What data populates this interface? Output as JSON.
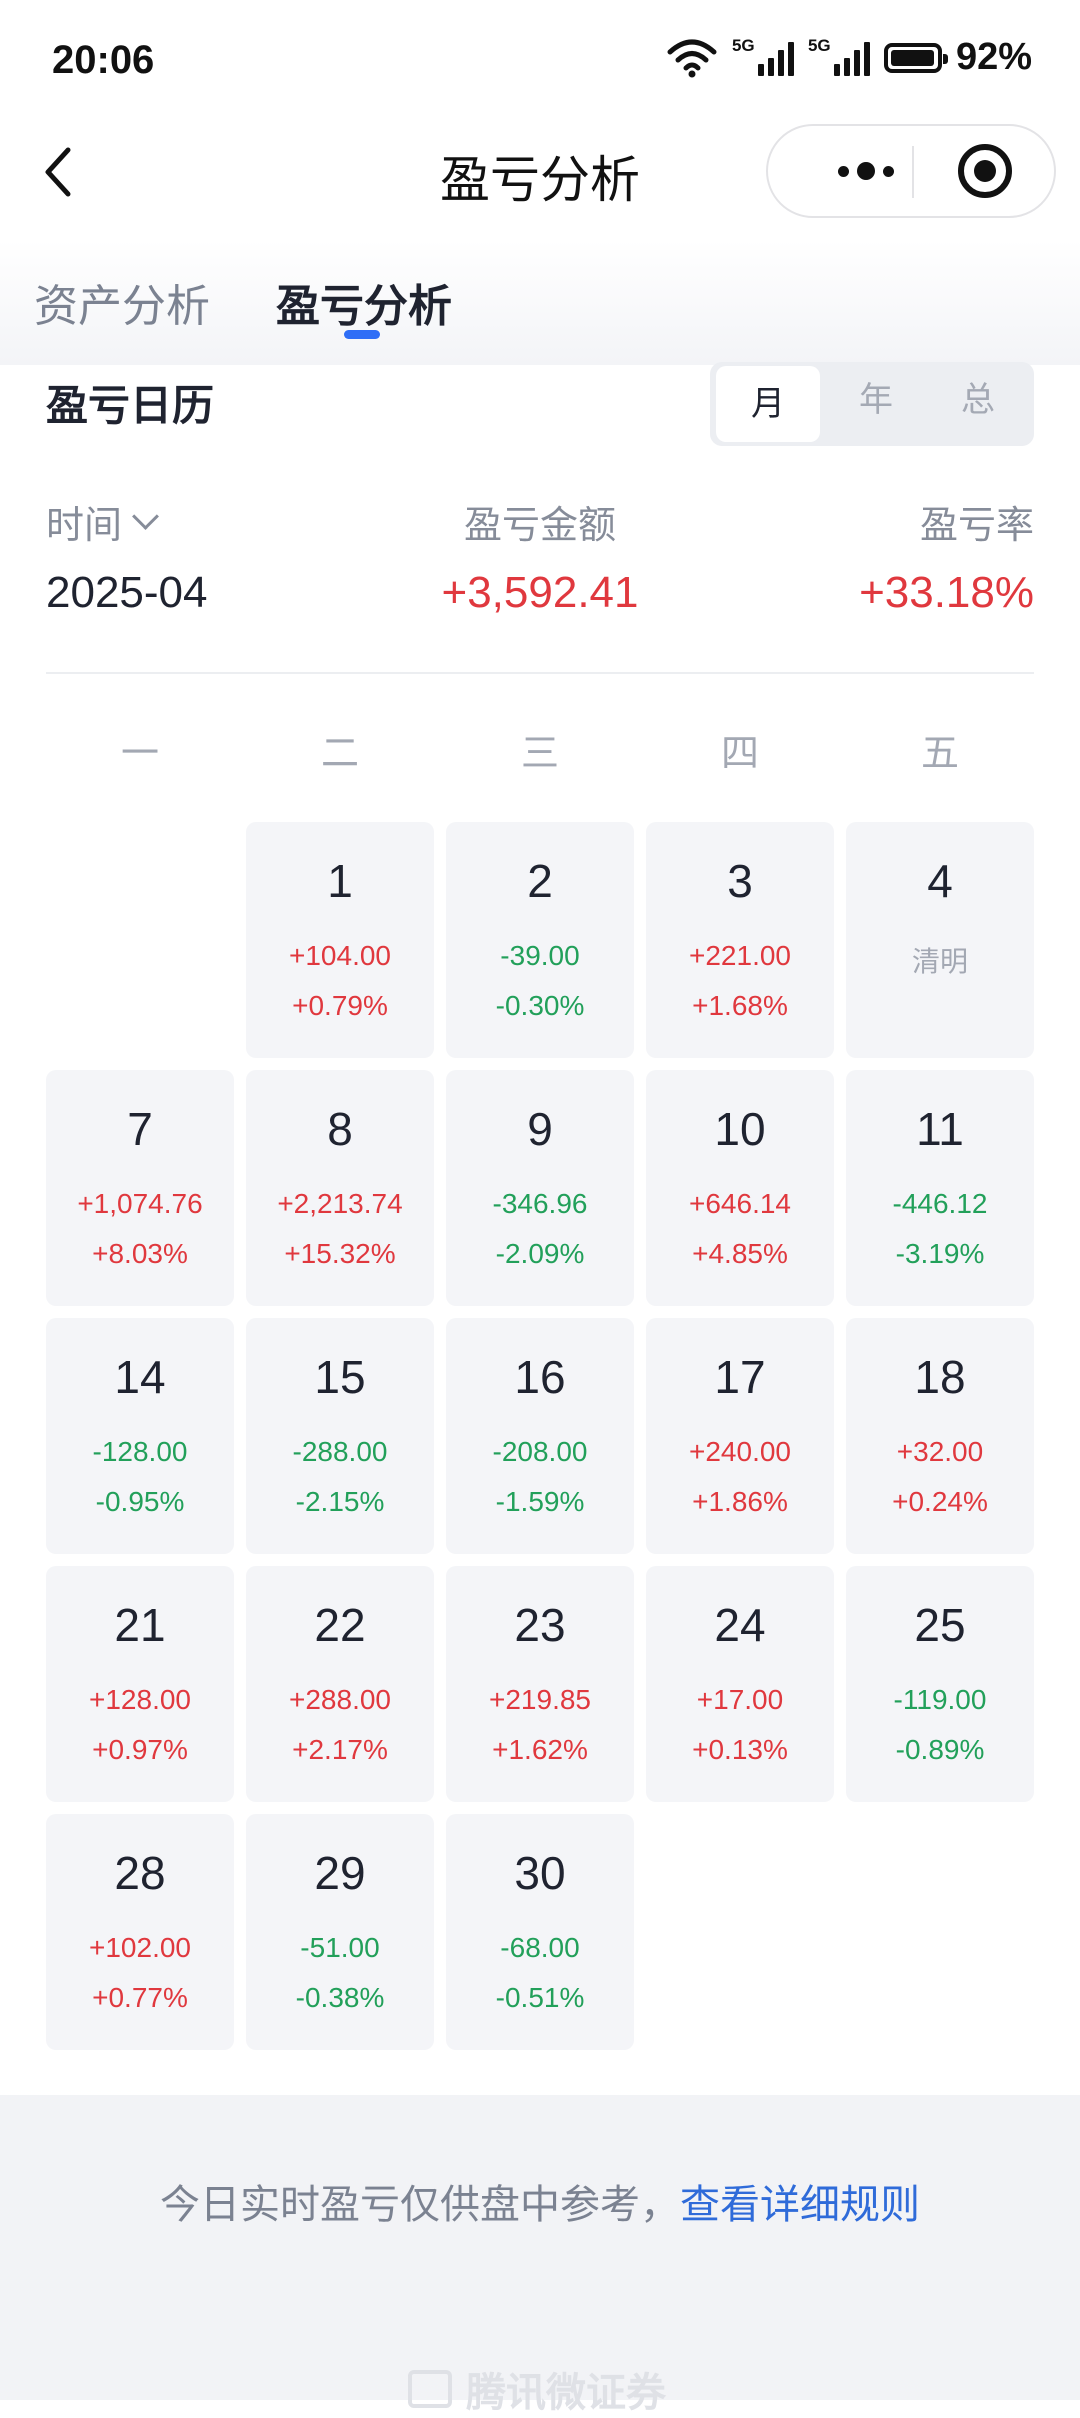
{
  "status_bar": {
    "time": "20:06",
    "network_1": "5G",
    "network_2": "5G",
    "battery": "92%"
  },
  "nav": {
    "title": "盈亏分析"
  },
  "tabs": [
    {
      "label": "资产分析",
      "active": false
    },
    {
      "label": "盈亏分析",
      "active": true
    }
  ],
  "section": {
    "title": "盈亏日历",
    "periods": [
      {
        "label": "月",
        "active": true
      },
      {
        "label": "年",
        "active": false
      },
      {
        "label": "总",
        "active": false
      }
    ]
  },
  "summary": {
    "time_label": "时间",
    "amount_label": "盈亏金额",
    "rate_label": "盈亏率",
    "time_value": "2025-04",
    "amount_value": "+3,592.41",
    "rate_value": "+33.18%"
  },
  "weekdays": [
    "一",
    "二",
    "三",
    "四",
    "五"
  ],
  "calendar": [
    {
      "day": "1",
      "amount": "+104.00",
      "rate": "+0.79%",
      "trend": "up"
    },
    {
      "day": "2",
      "amount": "-39.00",
      "rate": "-0.30%",
      "trend": "down"
    },
    {
      "day": "3",
      "amount": "+221.00",
      "rate": "+1.68%",
      "trend": "up"
    },
    {
      "day": "4",
      "holiday": "清明"
    },
    {
      "day": "7",
      "amount": "+1,074.76",
      "rate": "+8.03%",
      "trend": "up"
    },
    {
      "day": "8",
      "amount": "+2,213.74",
      "rate": "+15.32%",
      "trend": "up"
    },
    {
      "day": "9",
      "amount": "-346.96",
      "rate": "-2.09%",
      "trend": "down"
    },
    {
      "day": "10",
      "amount": "+646.14",
      "rate": "+4.85%",
      "trend": "up"
    },
    {
      "day": "11",
      "amount": "-446.12",
      "rate": "-3.19%",
      "trend": "down"
    },
    {
      "day": "14",
      "amount": "-128.00",
      "rate": "-0.95%",
      "trend": "down"
    },
    {
      "day": "15",
      "amount": "-288.00",
      "rate": "-2.15%",
      "trend": "down"
    },
    {
      "day": "16",
      "amount": "-208.00",
      "rate": "-1.59%",
      "trend": "down"
    },
    {
      "day": "17",
      "amount": "+240.00",
      "rate": "+1.86%",
      "trend": "up"
    },
    {
      "day": "18",
      "amount": "+32.00",
      "rate": "+0.24%",
      "trend": "up"
    },
    {
      "day": "21",
      "amount": "+128.00",
      "rate": "+0.97%",
      "trend": "up"
    },
    {
      "day": "22",
      "amount": "+288.00",
      "rate": "+2.17%",
      "trend": "up"
    },
    {
      "day": "23",
      "amount": "+219.85",
      "rate": "+1.62%",
      "trend": "up"
    },
    {
      "day": "24",
      "amount": "+17.00",
      "rate": "+0.13%",
      "trend": "up"
    },
    {
      "day": "25",
      "amount": "-119.00",
      "rate": "-0.89%",
      "trend": "down"
    },
    {
      "day": "28",
      "amount": "+102.00",
      "rate": "+0.77%",
      "trend": "up"
    },
    {
      "day": "29",
      "amount": "-51.00",
      "rate": "-0.38%",
      "trend": "down"
    },
    {
      "day": "30",
      "amount": "-68.00",
      "rate": "-0.51%",
      "trend": "down"
    }
  ],
  "footer": {
    "note": "今日实时盈亏仅供盘中参考，",
    "link": "查看详细规则",
    "brand": "腾讯微证券"
  },
  "colors": {
    "up": "#e0383e",
    "down": "#22a05a",
    "accent": "#2f6ef6",
    "link": "#2f6bd9"
  }
}
